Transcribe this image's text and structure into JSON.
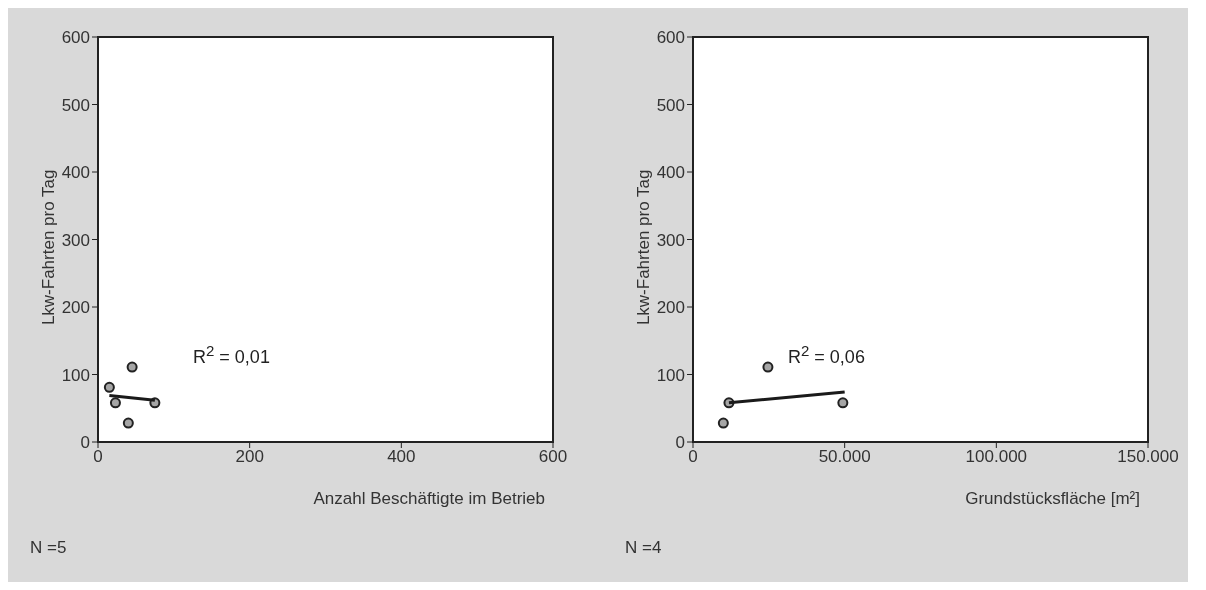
{
  "chart_data": [
    {
      "type": "scatter",
      "xlabel": "Anzahl Beschäftigte im Betrieb",
      "ylabel": "Lkw-Fahrten pro Tag",
      "xlim": [
        0,
        600
      ],
      "xticks": [
        0,
        200,
        400,
        600
      ],
      "ylim": [
        0,
        600
      ],
      "yticks": [
        0,
        100,
        200,
        300,
        400,
        500,
        600
      ],
      "series": [
        {
          "type": "scatter",
          "color": "#a6a6a6",
          "marker": "circle",
          "x": [
            15,
            23,
            45,
            40,
            75
          ],
          "values": [
            81,
            58,
            111,
            28,
            58
          ]
        },
        {
          "type": "line",
          "color": "#1a1a1a",
          "marker": "none",
          "x": [
            15,
            75
          ],
          "values": [
            69,
            62
          ]
        }
      ],
      "annotations": [
        "R$^{2}$ = 0,01",
        "N =5"
      ]
    },
    {
      "type": "scatter",
      "xlabel": "Grundstücksfläche [m²]",
      "ylabel": "Lkw-Fahrten pro Tag",
      "xlim": [
        0,
        150000
      ],
      "xticks": [
        0,
        {
          "value": 50000,
          "label": "50.000"
        },
        {
          "value": 100000,
          "label": "100.000"
        },
        {
          "value": 150000,
          "label": "150.000"
        }
      ],
      "ylim": [
        0,
        600
      ],
      "yticks": [
        0,
        100,
        200,
        300,
        400,
        500,
        600
      ],
      "series": [
        {
          "type": "scatter",
          "color": "#a6a6a6",
          "marker": "circle",
          "x": [
            11850,
            10000,
            24700,
            49400
          ],
          "values": [
            58,
            28,
            111,
            58
          ]
        },
        {
          "type": "line",
          "color": "#1a1a1a",
          "marker": "none",
          "x": [
            11850,
            50000
          ],
          "values": [
            58,
            74
          ]
        }
      ],
      "annotations": [
        "R$^{2}$ = 0,06",
        "N =4"
      ]
    }
  ]
}
